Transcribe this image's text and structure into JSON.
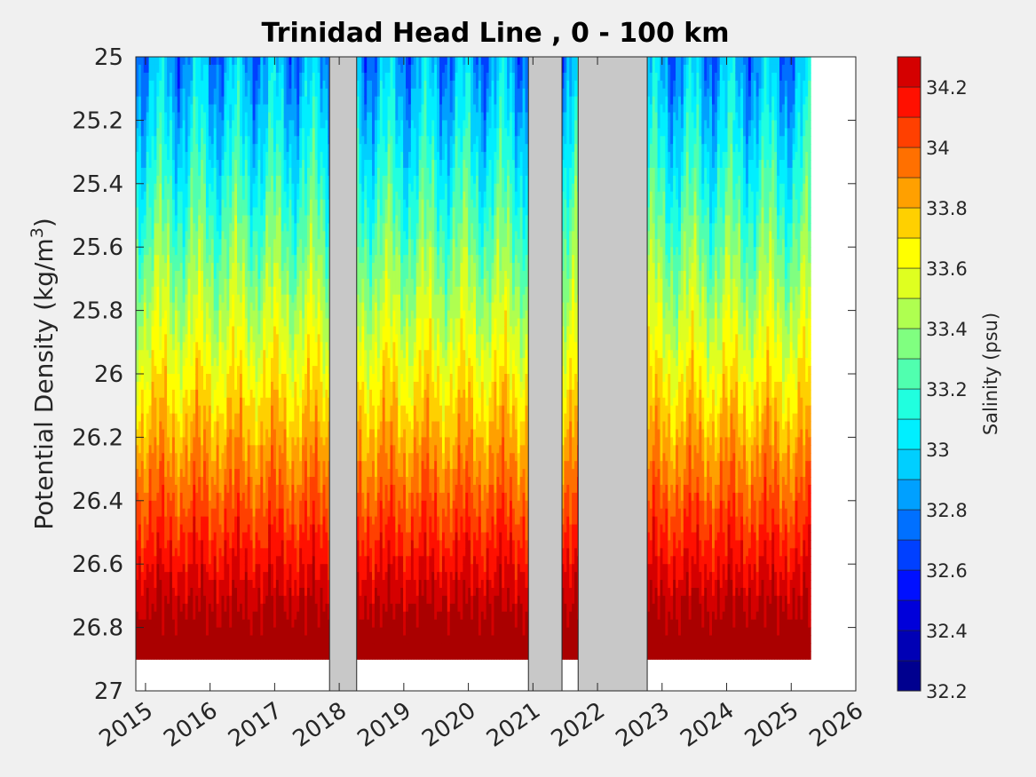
{
  "chart_data": {
    "type": "heatmap",
    "title": "Trinidad Head Line , 0 - 100 km",
    "ylabel_prefix": "Potential Density (kg/m",
    "ylabel_sup": "3",
    "ylabel_suffix": ")",
    "x_ticks": [
      2015,
      2016,
      2017,
      2018,
      2019,
      2020,
      2021,
      2022,
      2023,
      2024,
      2025,
      2026
    ],
    "x_tick_labels": [
      "2015",
      "2016",
      "2017",
      "2018",
      "2019",
      "2020",
      "2021",
      "2022",
      "2023",
      "2024",
      "2025",
      "2026"
    ],
    "xlim": [
      2014.85,
      2026.0
    ],
    "y_ticks": [
      25,
      25.2,
      25.4,
      25.6,
      25.8,
      26,
      26.2,
      26.4,
      26.6,
      26.8,
      27
    ],
    "y_tick_labels": [
      "25",
      "25.2",
      "25.4",
      "25.6",
      "25.8",
      "26",
      "26.2",
      "26.4",
      "26.6",
      "26.8",
      "27"
    ],
    "ylim": [
      25,
      27
    ],
    "y_reversed": true,
    "data_xlim": [
      2014.85,
      2025.3
    ],
    "no_data_gaps": [
      [
        2017.85,
        2018.27
      ],
      [
        2020.93,
        2021.45
      ],
      [
        2021.7,
        2022.77
      ]
    ],
    "colorbar": {
      "label": "Salinity (psu)",
      "range": [
        32.2,
        34.3
      ],
      "ticks": [
        32.2,
        32.4,
        32.6,
        32.8,
        33,
        33.2,
        33.4,
        33.6,
        33.8,
        34,
        34.2
      ],
      "tick_labels": [
        "32.2",
        "32.4",
        "32.6",
        "32.8",
        "33",
        "33.2",
        "33.4",
        "33.6",
        "33.8",
        "34",
        "34.2"
      ],
      "levels": [
        32.2,
        32.3,
        32.4,
        32.5,
        32.6,
        32.7,
        32.8,
        32.9,
        33.0,
        33.1,
        33.2,
        33.3,
        33.4,
        33.5,
        33.6,
        33.7,
        33.8,
        33.9,
        34.0,
        34.1,
        34.2,
        34.3
      ],
      "colors": [
        "#00008f",
        "#0000b5",
        "#0000da",
        "#0010ff",
        "#0040ff",
        "#0070ff",
        "#00a0ff",
        "#00cfff",
        "#00efff",
        "#20ffdf",
        "#50ffaf",
        "#80ff80",
        "#afff50",
        "#dfff20",
        "#ffff00",
        "#ffd000",
        "#ffa000",
        "#ff7000",
        "#ff4000",
        "#ff1000",
        "#d50000",
        "#aa0000"
      ],
      "colormap": "jet"
    }
  }
}
